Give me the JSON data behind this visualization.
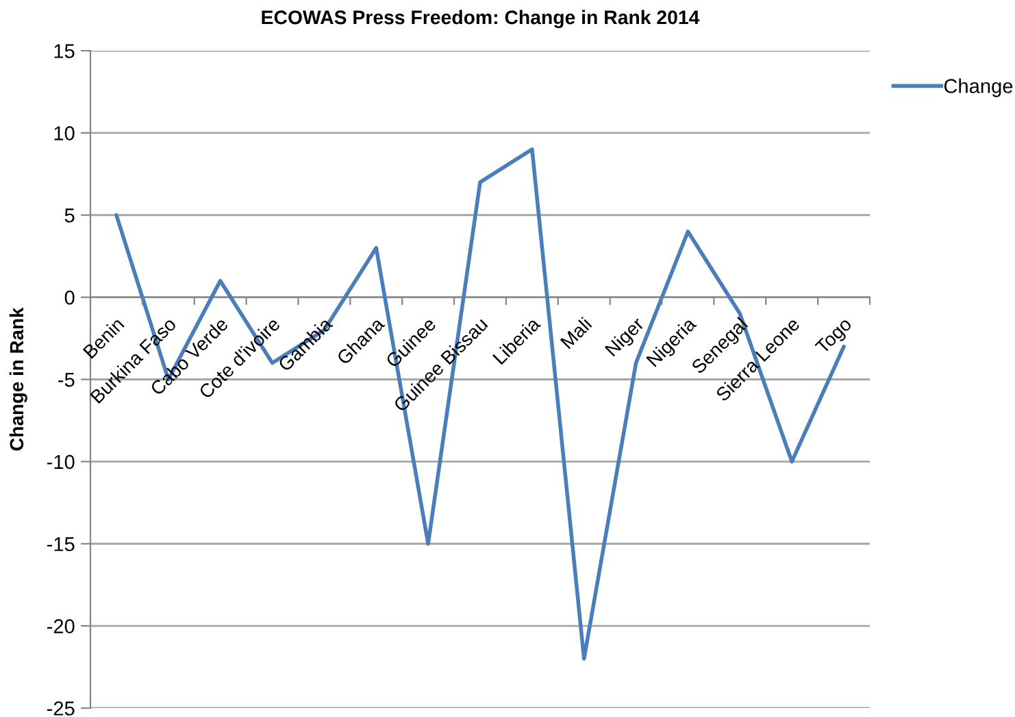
{
  "chart_data": {
    "type": "line",
    "title": "ECOWAS Press Freedom: Change in Rank 2014",
    "ylabel": "Change in Rank",
    "categories": [
      "Benin",
      "Burkina Faso",
      "Cabo Verde",
      "Cote d'ivoire",
      "Gambia",
      "Ghana",
      "Guinee",
      "Guinee Bissau",
      "Liberia",
      "Mali",
      "Niger",
      "Nigeria",
      "Senegal",
      "Sierra Leone",
      "Togo"
    ],
    "series": [
      {
        "name": "Change",
        "color": "#4a7ebb",
        "values": [
          5,
          -5,
          1,
          -4,
          -2,
          3,
          -15,
          7,
          9,
          -22,
          -4,
          4,
          -1,
          -10,
          -3
        ]
      }
    ],
    "ylim": [
      -25,
      15
    ],
    "yticks": [
      -25,
      -20,
      -15,
      -10,
      -5,
      0,
      5,
      10,
      15
    ],
    "grid": "y",
    "legend": "top right",
    "line_style": "solid"
  }
}
